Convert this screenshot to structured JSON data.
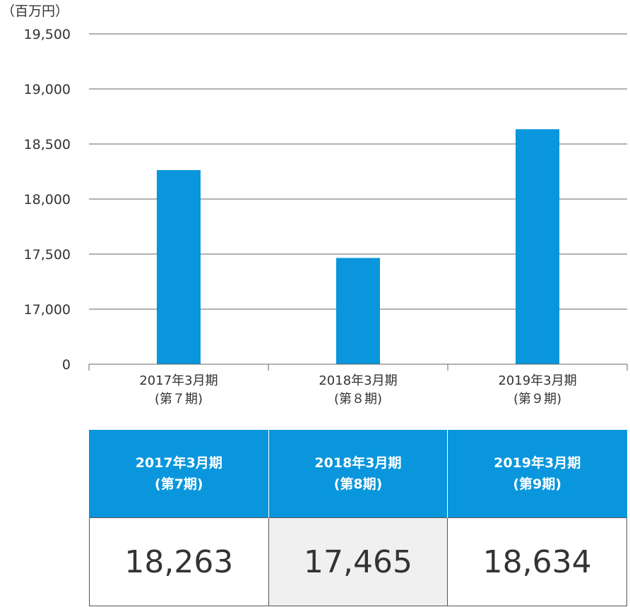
{
  "chart_data": {
    "type": "bar",
    "unit_label": "（百万円）",
    "categories": [
      [
        "2017年3月期",
        "(第７期)"
      ],
      [
        "2018年3月期",
        "(第８期)"
      ],
      [
        "2019年3月期",
        "(第９期)"
      ]
    ],
    "values": [
      18263,
      17465,
      18634
    ],
    "y_ticks": [
      {
        "value": 0,
        "label": "0"
      },
      {
        "value": 17000,
        "label": "17,000"
      },
      {
        "value": 17500,
        "label": "17,500"
      },
      {
        "value": 18000,
        "label": "18,000"
      },
      {
        "value": 18500,
        "label": "18,500"
      },
      {
        "value": 19000,
        "label": "19,000"
      },
      {
        "value": 19500,
        "label": "19,500"
      }
    ],
    "axis_break": {
      "from": 0,
      "to": 17000
    },
    "ylim": [
      0,
      19500
    ],
    "grid": true,
    "bar_color": "#0a96dc"
  },
  "table": {
    "headers": [
      {
        "line1": "2017年3月期",
        "line2": "(第7期)"
      },
      {
        "line1": "2018年3月期",
        "line2": "(第8期)"
      },
      {
        "line1": "2019年3月期",
        "line2": "(第9期)"
      }
    ],
    "values": [
      "18,263",
      "17,465",
      "18,634"
    ]
  },
  "colors": {
    "accent": "#0a96dc",
    "grid": "#666666",
    "shaded_cell": "#f0f0f0"
  }
}
